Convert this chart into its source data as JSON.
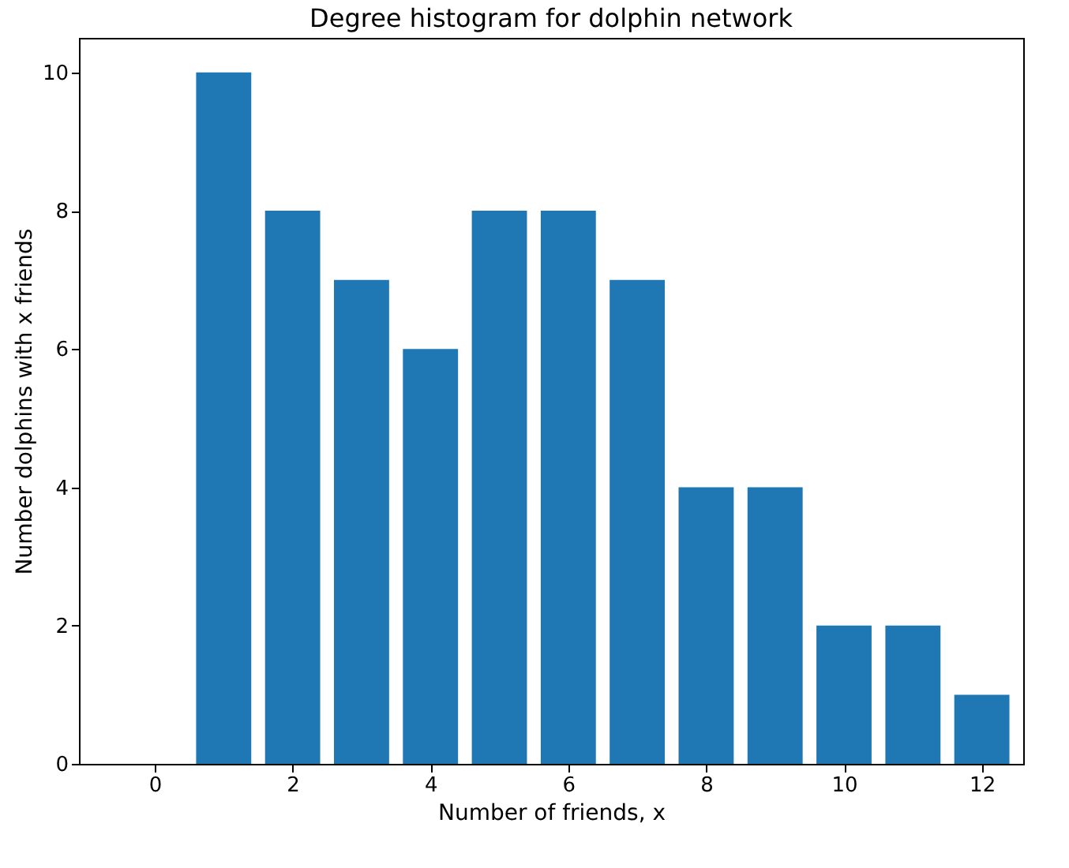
{
  "chart_data": {
    "type": "bar",
    "title": "Degree histogram for dolphin network",
    "xlabel": "Number of friends, x",
    "ylabel": "Number dolphins with x friends",
    "x": [
      0,
      1,
      2,
      3,
      4,
      5,
      6,
      7,
      8,
      9,
      10,
      11,
      12
    ],
    "values": [
      0,
      10,
      8,
      7,
      6,
      8,
      8,
      7,
      4,
      4,
      2,
      2,
      1
    ],
    "color": "#1f77b4",
    "xlim": [
      -1.1,
      12.6
    ],
    "xticks": [
      0,
      2,
      4,
      6,
      8,
      10,
      12
    ],
    "ylim": [
      0,
      10.5
    ],
    "yticks": [
      0,
      2,
      4,
      6,
      8,
      10
    ],
    "grid": false
  }
}
